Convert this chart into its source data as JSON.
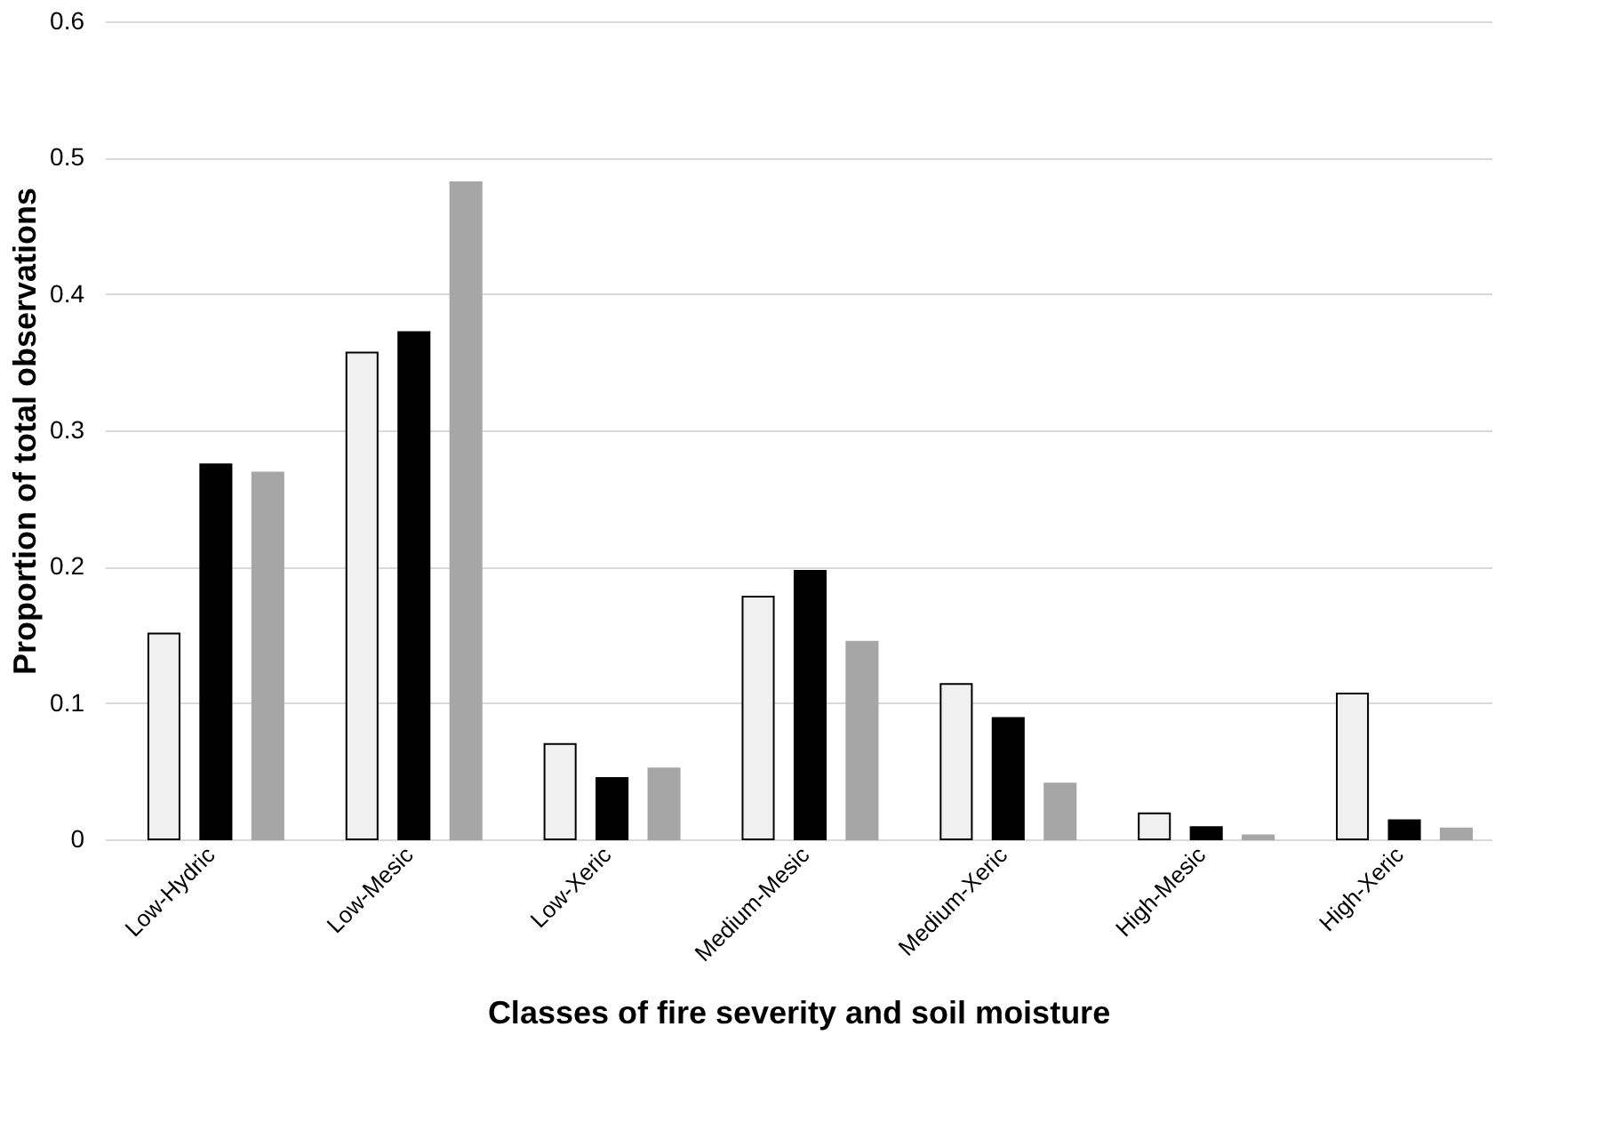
{
  "chart_data": {
    "type": "bar",
    "xlabel": "Classes of fire severity and soil moisture",
    "ylabel": "Proportion of total observations",
    "categories": [
      "Low-Hydric",
      "Low-Mesic",
      "Low-Xeric",
      "Medium-Mesic",
      "Medium-Xeric",
      "High-Mesic",
      "High-Xeric"
    ],
    "series": [
      {
        "color": "#f0f0f0",
        "values": [
          0.151,
          0.357,
          0.07,
          0.178,
          0.114,
          0.019,
          0.107
        ]
      },
      {
        "color": "#000000",
        "values": [
          0.275,
          0.372,
          0.045,
          0.197,
          0.089,
          0.009,
          0.014
        ]
      },
      {
        "color": "#a6a6a6",
        "values": [
          0.269,
          0.482,
          0.052,
          0.145,
          0.041,
          0.003,
          0.008
        ]
      }
    ],
    "ylim": [
      0,
      0.6
    ],
    "yticks": [
      0,
      0.1,
      0.2,
      0.3,
      0.4,
      0.5,
      0.6
    ],
    "grid": "y",
    "legend": false
  }
}
